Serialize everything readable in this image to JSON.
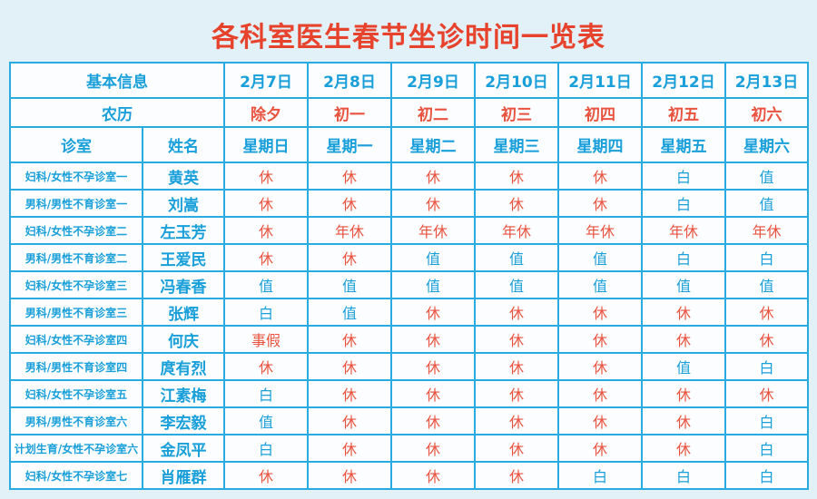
{
  "title": "各科室医生春节坐诊时间一览表",
  "colors": {
    "title_red": "#e7422c",
    "text_blue": "#199fd9",
    "text_red": "#e9523f",
    "border_cyan": "#29abe2",
    "page_bg": "#e2f1f8",
    "cell_bg": "#fbfdfe"
  },
  "table": {
    "header": {
      "basic_info_label": "基本信息",
      "dates": [
        "2月7日",
        "2月8日",
        "2月9日",
        "2月10日",
        "2月11日",
        "2月12日",
        "2月13日"
      ],
      "lunar_label": "农历",
      "lunar_days": [
        "除夕",
        "初一",
        "初二",
        "初三",
        "初四",
        "初五",
        "初六"
      ],
      "room_label": "诊室",
      "name_label": "姓名",
      "weekdays": [
        "星期日",
        "星期一",
        "星期二",
        "星期三",
        "星期四",
        "星期五",
        "星期六"
      ]
    },
    "rows": [
      {
        "room": "妇科/女性不孕诊室一",
        "name": "黄英",
        "schedule": [
          "休",
          "休",
          "休",
          "休",
          "休",
          "白",
          "值"
        ]
      },
      {
        "room": "男科/男性不育诊室一",
        "name": "刘嵩",
        "schedule": [
          "休",
          "休",
          "休",
          "休",
          "休",
          "白",
          "值"
        ]
      },
      {
        "room": "妇科/女性不孕诊室二",
        "name": "左玉芳",
        "schedule": [
          "休",
          "年休",
          "年休",
          "年休",
          "年休",
          "年休",
          "年休"
        ]
      },
      {
        "room": "男科/男性不育诊室二",
        "name": "王爱民",
        "schedule": [
          "休",
          "休",
          "值",
          "值",
          "值",
          "白",
          "白"
        ]
      },
      {
        "room": "妇科/女性不孕诊室三",
        "name": "冯春香",
        "schedule": [
          "值",
          "值",
          "值",
          "值",
          "值",
          "值",
          "值"
        ]
      },
      {
        "room": "男科/男性不育诊室三",
        "name": "张辉",
        "schedule": [
          "白",
          "值",
          "休",
          "休",
          "休",
          "休",
          "休"
        ]
      },
      {
        "room": "妇科/女性不孕诊室四",
        "name": "何庆",
        "schedule": [
          "事假",
          "休",
          "休",
          "休",
          "休",
          "休",
          "休"
        ]
      },
      {
        "room": "男科/男性不育诊室四",
        "name": "庹有烈",
        "schedule": [
          "休",
          "休",
          "休",
          "休",
          "休",
          "值",
          "白"
        ]
      },
      {
        "room": "妇科/女性不孕诊室五",
        "name": "江素梅",
        "schedule": [
          "白",
          "休",
          "休",
          "休",
          "休",
          "休",
          "休"
        ]
      },
      {
        "room": "男科/男性不育诊室六",
        "name": "李宏毅",
        "schedule": [
          "值",
          "休",
          "休",
          "休",
          "休",
          "休",
          "白"
        ]
      },
      {
        "room": "计划生育/女性不孕诊室六",
        "name": "金凤平",
        "schedule": [
          "白",
          "休",
          "休",
          "休",
          "休",
          "休",
          "白"
        ]
      },
      {
        "room": "妇科/女性不孕诊室七",
        "name": "肖雁群",
        "schedule": [
          "休",
          "休",
          "休",
          "休",
          "白",
          "白",
          "白"
        ]
      }
    ]
  }
}
